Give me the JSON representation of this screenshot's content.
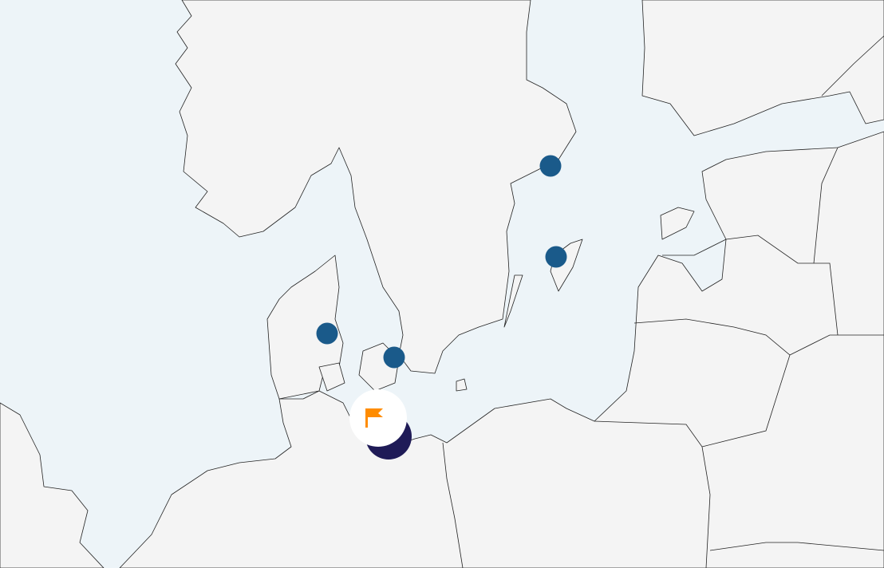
{
  "map": {
    "colors": {
      "sea": "#edf4f8",
      "land": "#f4f4f4",
      "marker": "#1a5a8a",
      "selected_marker": "#1f1b57",
      "flag": "#ff8c00"
    },
    "markers": [
      {
        "icon": "location-dot"
      },
      {
        "icon": "location-dot"
      },
      {
        "icon": "location-dot"
      },
      {
        "icon": "location-dot"
      }
    ],
    "selected_marker": {
      "icon": "flag-icon"
    }
  }
}
